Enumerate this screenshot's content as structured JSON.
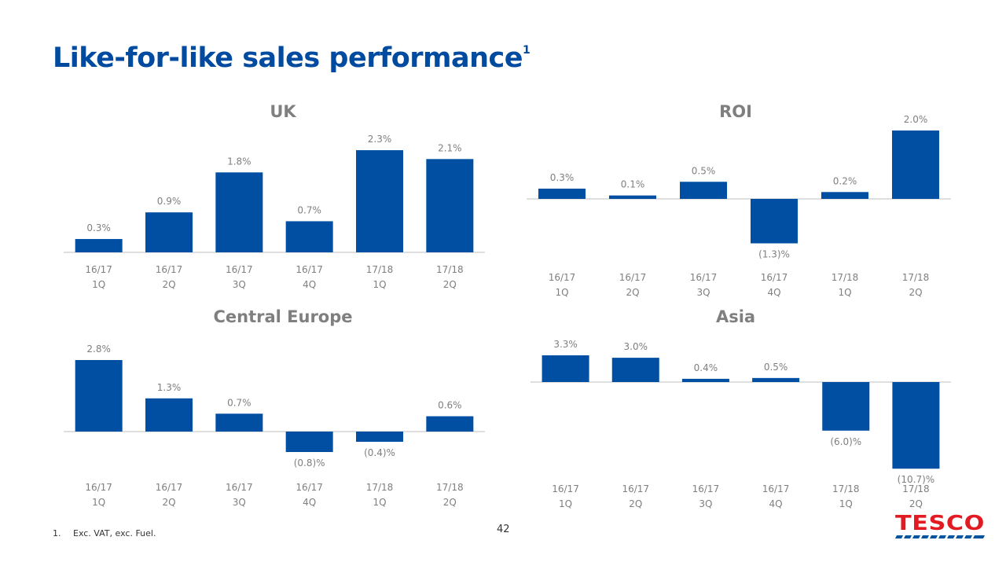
{
  "page": {
    "title": "Like-for-like sales performance",
    "title_sup": "1",
    "footnote_number": "1.",
    "footnote_text": "Exc. VAT, exc. Fuel.",
    "page_number": "42",
    "brand": "TESCO"
  },
  "colors": {
    "bar": "#004fa3",
    "title": "#004a9f",
    "text": "#7f7f7f",
    "logo_red": "#e21b22",
    "logo_blue": "#00539f"
  },
  "chart_data": [
    {
      "type": "bar",
      "title": "UK",
      "categories": [
        [
          "16/17",
          "1Q"
        ],
        [
          "16/17",
          "2Q"
        ],
        [
          "16/17",
          "3Q"
        ],
        [
          "16/17",
          "4Q"
        ],
        [
          "17/18",
          "1Q"
        ],
        [
          "17/18",
          "2Q"
        ]
      ],
      "values": [
        0.3,
        0.9,
        1.8,
        0.7,
        2.3,
        2.1
      ],
      "labels": [
        "0.3%",
        "0.9%",
        "1.8%",
        "0.7%",
        "2.3%",
        "2.1%"
      ],
      "unit": "%"
    },
    {
      "type": "bar",
      "title": "ROI",
      "categories": [
        [
          "16/17",
          "1Q"
        ],
        [
          "16/17",
          "2Q"
        ],
        [
          "16/17",
          "3Q"
        ],
        [
          "16/17",
          "4Q"
        ],
        [
          "17/18",
          "1Q"
        ],
        [
          "17/18",
          "2Q"
        ]
      ],
      "values": [
        0.3,
        0.1,
        0.5,
        -1.3,
        0.2,
        2.0
      ],
      "labels": [
        "0.3%",
        "0.1%",
        "0.5%",
        "(1.3)%",
        "0.2%",
        "2.0%"
      ],
      "unit": "%"
    },
    {
      "type": "bar",
      "title": "Central Europe",
      "categories": [
        [
          "16/17",
          "1Q"
        ],
        [
          "16/17",
          "2Q"
        ],
        [
          "16/17",
          "3Q"
        ],
        [
          "16/17",
          "4Q"
        ],
        [
          "17/18",
          "1Q"
        ],
        [
          "17/18",
          "2Q"
        ]
      ],
      "values": [
        2.8,
        1.3,
        0.7,
        -0.8,
        -0.4,
        0.6
      ],
      "labels": [
        "2.8%",
        "1.3%",
        "0.7%",
        "(0.8)%",
        "(0.4)%",
        "0.6%"
      ],
      "unit": "%"
    },
    {
      "type": "bar",
      "title": "Asia",
      "categories": [
        [
          "16/17",
          "1Q"
        ],
        [
          "16/17",
          "2Q"
        ],
        [
          "16/17",
          "3Q"
        ],
        [
          "16/17",
          "4Q"
        ],
        [
          "17/18",
          "1Q"
        ],
        [
          "17/18",
          "2Q"
        ]
      ],
      "values": [
        3.3,
        3.0,
        0.4,
        0.5,
        -6.0,
        -10.7
      ],
      "labels": [
        "3.3%",
        "3.0%",
        "0.4%",
        "0.5%",
        "(6.0)%",
        "(10.7)%"
      ],
      "unit": "%"
    }
  ]
}
